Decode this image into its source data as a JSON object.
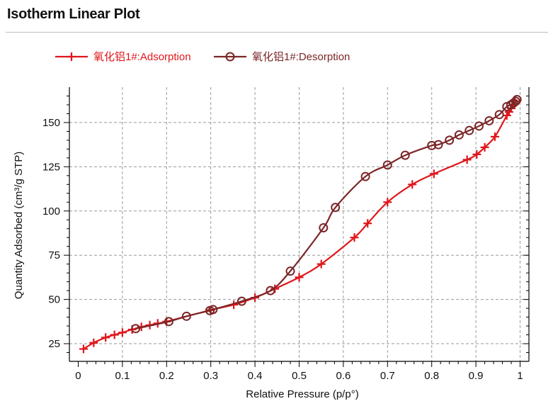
{
  "page": {
    "title": "Isotherm Linear Plot"
  },
  "chart_data": {
    "type": "line",
    "xlabel": "Relative Pressure (p/p°)",
    "ylabel": "Quantity Adsorbed (cm³/g STP)",
    "xlim": [
      -0.02,
      1.02
    ],
    "ylim": [
      15,
      170
    ],
    "xticks": [
      0,
      0.1,
      0.2,
      0.3,
      0.4,
      0.5,
      0.6,
      0.7,
      0.8,
      0.9,
      1
    ],
    "xtick_labels": [
      "0",
      "0.1",
      "0.2",
      "0.3",
      "0.4",
      "0.5",
      "0.6",
      "0.7",
      "0.8",
      "0.9",
      "1"
    ],
    "yticks": [
      25,
      50,
      75,
      100,
      125,
      150
    ],
    "ytick_labels": [
      "25",
      "50",
      "75",
      "100",
      "125",
      "150"
    ],
    "grid": true,
    "legend_position": "top-left",
    "series": [
      {
        "name": "氧化铝1#:Adsorption",
        "color": "#e0161b",
        "marker": "plus-icon",
        "x": [
          0.012,
          0.035,
          0.062,
          0.082,
          0.1,
          0.122,
          0.143,
          0.162,
          0.18,
          0.2,
          0.3,
          0.352,
          0.4,
          0.445,
          0.5,
          0.55,
          0.625,
          0.655,
          0.7,
          0.756,
          0.805,
          0.88,
          0.902,
          0.92,
          0.943,
          0.97,
          0.975,
          0.98,
          0.984,
          0.988
        ],
        "y": [
          22,
          25.5,
          28.5,
          30,
          31.3,
          33,
          34.5,
          35.5,
          36.5,
          37.5,
          44,
          47,
          51,
          56,
          62.5,
          70,
          85,
          93,
          105,
          115,
          121,
          129,
          132,
          136,
          142,
          154,
          156,
          158,
          160,
          162
        ]
      },
      {
        "name": "氧化铝1#:Desorption",
        "color": "#7b2628",
        "marker": "circle-icon",
        "x": [
          0.993,
          0.99,
          0.985,
          0.979,
          0.97,
          0.953,
          0.93,
          0.907,
          0.885,
          0.862,
          0.84,
          0.815,
          0.8,
          0.74,
          0.7,
          0.65,
          0.582,
          0.555,
          0.48,
          0.435,
          0.37,
          0.305,
          0.298,
          0.245,
          0.205,
          0.13
        ],
        "y": [
          163,
          162,
          161,
          160,
          159,
          154.5,
          151,
          148,
          145.5,
          143,
          140,
          137.5,
          137,
          131.5,
          126,
          119.5,
          102,
          90.5,
          66,
          55,
          49,
          44.3,
          43.7,
          40.5,
          37.5,
          33.5
        ]
      }
    ]
  }
}
